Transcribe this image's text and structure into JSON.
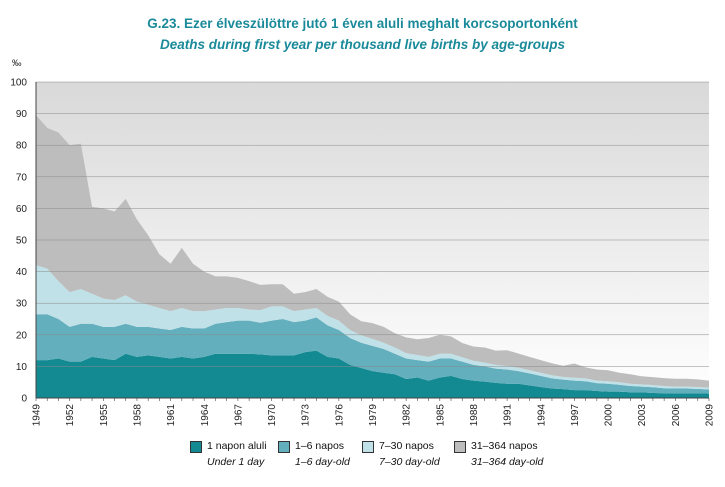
{
  "titles": {
    "main": "G.23. Ezer élveszülöttre jutó 1 éven aluli meghalt korcsoportonként",
    "sub": "Deaths during first year per thousand live births by age-groups"
  },
  "chart_data": {
    "type": "area",
    "stacked": true,
    "unit": "‰",
    "ylim": [
      0,
      100
    ],
    "yticks": [
      0,
      10,
      20,
      30,
      40,
      50,
      60,
      70,
      80,
      90,
      100
    ],
    "xlim": [
      1949,
      2009
    ],
    "xticks": [
      1949,
      1952,
      1955,
      1958,
      1961,
      1964,
      1967,
      1970,
      1973,
      1976,
      1979,
      1982,
      1985,
      1988,
      1991,
      1994,
      1997,
      2000,
      2003,
      2006,
      2009
    ],
    "grid": true,
    "legend_position": "bottom",
    "x": [
      1949,
      1950,
      1951,
      1952,
      1953,
      1954,
      1955,
      1956,
      1957,
      1958,
      1959,
      1960,
      1961,
      1962,
      1963,
      1964,
      1965,
      1966,
      1967,
      1968,
      1969,
      1970,
      1971,
      1972,
      1973,
      1974,
      1975,
      1976,
      1977,
      1978,
      1979,
      1980,
      1981,
      1982,
      1983,
      1984,
      1985,
      1986,
      1987,
      1988,
      1989,
      1990,
      1991,
      1992,
      1993,
      1994,
      1995,
      1996,
      1997,
      1998,
      1999,
      2000,
      2001,
      2002,
      2003,
      2004,
      2005,
      2006,
      2007,
      2008,
      2009
    ],
    "series": [
      {
        "name": "1 napon aluli",
        "name_en": "Under 1 day",
        "color": "#138a92",
        "values": [
          12,
          12,
          12.5,
          11.5,
          11.5,
          13,
          12.5,
          12,
          14,
          13,
          13.5,
          13,
          12.5,
          13,
          12.5,
          13,
          14,
          14,
          14,
          14,
          13.8,
          13.5,
          13.5,
          13.5,
          14.5,
          15,
          13,
          12.5,
          10.5,
          9.5,
          8.5,
          8,
          7.5,
          6,
          6.5,
          5.5,
          6.5,
          7,
          6,
          5.5,
          5.2,
          4.8,
          4.5,
          4.5,
          4,
          3.5,
          3,
          2.8,
          2.5,
          2.5,
          2.2,
          2,
          2,
          1.8,
          1.8,
          1.6,
          1.5,
          1.5,
          1.5,
          1.5,
          1.4
        ]
      },
      {
        "name": "1–6 napos",
        "name_en": "1–6 day-old",
        "color": "#63afbd",
        "values": [
          14.5,
          14.5,
          12.5,
          11,
          12,
          10.5,
          10,
          10.5,
          9.5,
          9.5,
          9,
          9,
          9,
          9.5,
          9.5,
          9,
          9.5,
          10,
          10.5,
          10.5,
          10,
          11,
          11.5,
          10.5,
          10,
          10.5,
          10,
          9,
          8.5,
          8,
          8,
          7.5,
          6.5,
          6.5,
          5.5,
          6,
          6,
          5.5,
          5.5,
          5,
          4.8,
          4.5,
          4.5,
          4,
          3.8,
          3.5,
          3.2,
          3,
          3,
          2.8,
          2.5,
          2.5,
          2.2,
          2,
          1.8,
          1.8,
          1.6,
          1.5,
          1.5,
          1.4,
          1.3
        ]
      },
      {
        "name": "7–30 napos",
        "name_en": "7–30 day-old",
        "color": "#bfe1e7",
        "values": [
          15.5,
          14.5,
          12,
          11,
          11,
          9.5,
          9,
          8.5,
          9,
          8,
          7,
          6.5,
          6,
          6,
          5.5,
          5.5,
          4.5,
          4.5,
          4,
          3.5,
          4,
          4.5,
          4,
          3.5,
          3.5,
          3,
          3,
          3,
          2.5,
          2.3,
          2.2,
          2,
          2,
          1.7,
          1.6,
          1.5,
          1.5,
          1.5,
          1.4,
          1.3,
          1.2,
          1.2,
          1.1,
          1.1,
          1,
          1,
          1,
          0.9,
          0.9,
          0.9,
          0.8,
          0.8,
          0.8,
          0.7,
          0.7,
          0.7,
          0.7,
          0.6,
          0.6,
          0.6,
          0.6
        ]
      },
      {
        "name": "31–364 napos",
        "name_en": "31–364 day-old",
        "color": "#bdbdbd",
        "values": [
          47.5,
          44.5,
          47,
          46.5,
          46,
          27.5,
          28.5,
          28,
          30.5,
          26,
          22,
          17,
          15,
          19,
          15,
          12.5,
          10.5,
          10,
          9.5,
          9,
          8,
          7,
          7,
          5.5,
          5.5,
          6,
          6,
          6,
          5,
          4.5,
          5,
          5,
          4.5,
          5,
          5,
          6,
          6,
          5.5,
          4.5,
          4.5,
          4.8,
          4.5,
          5,
          4.5,
          4.2,
          4,
          3.8,
          3.5,
          4.5,
          3.5,
          3.5,
          3.5,
          3,
          3,
          2.6,
          2.5,
          2.5,
          2.5,
          2.5,
          2.4,
          2.2
        ]
      }
    ]
  }
}
